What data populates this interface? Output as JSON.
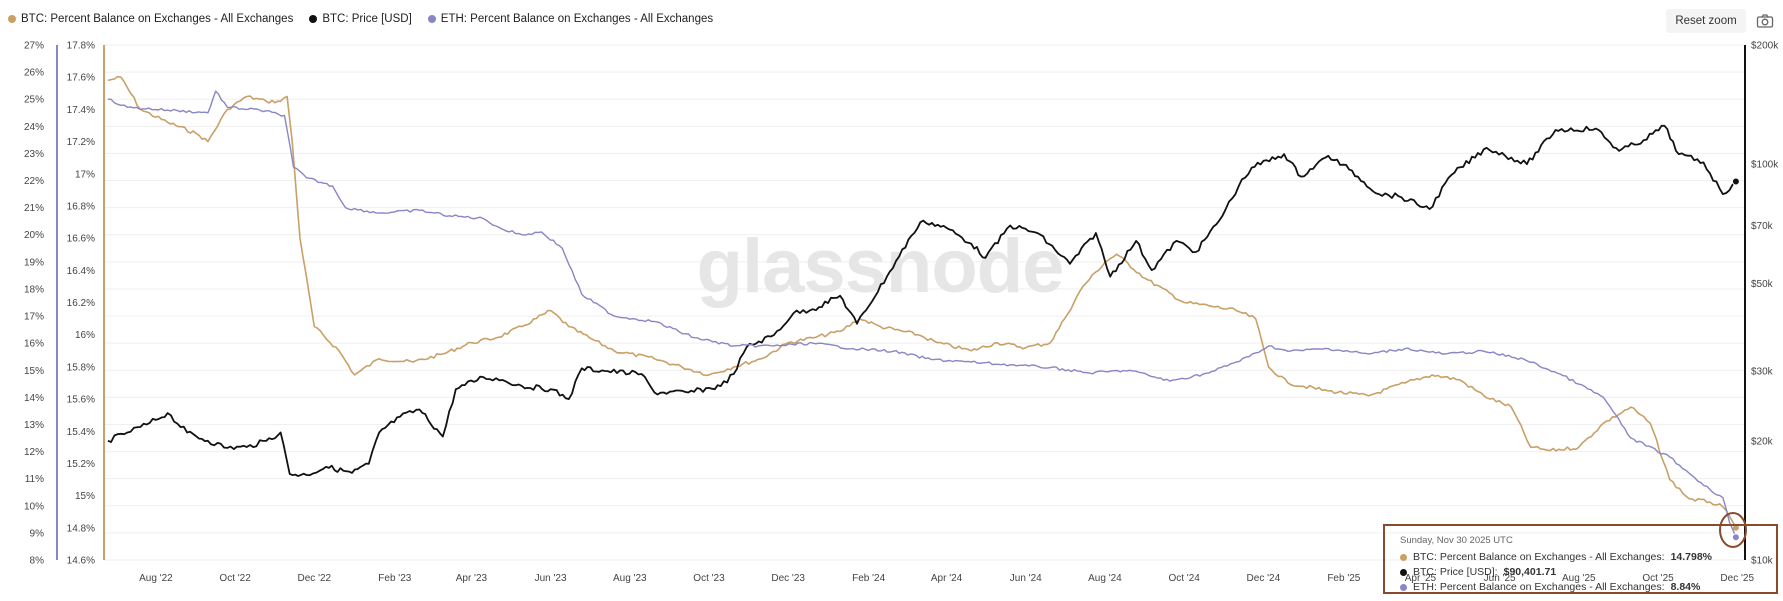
{
  "legend": [
    {
      "label": "BTC: Percent Balance on Exchanges - All Exchanges",
      "color": "#c9a067"
    },
    {
      "label": "BTC: Price [USD]",
      "color": "#111111"
    },
    {
      "label": "ETH: Percent Balance on Exchanges - All Exchanges",
      "color": "#8886c4"
    }
  ],
  "toolbar": {
    "reset_zoom_label": "Reset zoom",
    "camera_icon": "camera-icon"
  },
  "watermark": "glassnode",
  "colors": {
    "btc_balance": "#c9a067",
    "btc_price": "#111111",
    "eth_balance": "#8886c4",
    "highlight_box": "#8b4a2c"
  },
  "tooltip": {
    "date": "Sunday, Nov 30 2025 UTC",
    "rows": [
      {
        "label": "BTC: Percent Balance on Exchanges - All Exchanges:",
        "value": "14.798%",
        "color": "#c9a067"
      },
      {
        "label": "BTC: Price [USD]:",
        "value": "$90,401.71",
        "color": "#111111"
      },
      {
        "label": "ETH: Percent Balance on Exchanges - All Exchanges:",
        "value": "8.84%",
        "color": "#8886c4"
      }
    ]
  },
  "chart_data": {
    "type": "line",
    "x_ticks": [
      "Aug '22",
      "Oct '22",
      "Dec '22",
      "Feb '23",
      "Apr '23",
      "Jun '23",
      "Aug '23",
      "Oct '23",
      "Dec '23",
      "Feb '24",
      "Apr '24",
      "Jun '24",
      "Aug '24",
      "Oct '24",
      "Dec '24",
      "Feb '25",
      "Apr '25",
      "Jun '25",
      "Aug '25",
      "Oct '25",
      "Dec '25"
    ],
    "x_range": [
      "2022-06-22",
      "2025-12-07"
    ],
    "axes": {
      "eth_left": {
        "ticks": [
          "27%",
          "26%",
          "25%",
          "24%",
          "23%",
          "22%",
          "21%",
          "20%",
          "19%",
          "18%",
          "17%",
          "16%",
          "15%",
          "14%",
          "13%",
          "12%",
          "11%",
          "10%",
          "9%",
          "8%"
        ],
        "range": [
          8,
          27
        ]
      },
      "btc_left": {
        "ticks": [
          "17.8%",
          "17.6%",
          "17.4%",
          "17.2%",
          "17%",
          "16.8%",
          "16.6%",
          "16.4%",
          "16.2%",
          "16%",
          "15.8%",
          "15.6%",
          "15.4%",
          "15.2%",
          "15%",
          "14.8%",
          "14.6%"
        ],
        "range": [
          14.6,
          17.8
        ]
      },
      "price_right": {
        "ticks": [
          "$200k",
          "$100k",
          "$70k",
          "$50k",
          "$30k",
          "$20k",
          "$10k"
        ],
        "tick_values": [
          200000,
          100000,
          70000,
          50000,
          30000,
          20000,
          10000
        ],
        "scale": "log",
        "range": [
          10000,
          200000
        ]
      }
    },
    "grid": "horizontal",
    "legend_position": "top-left",
    "series": [
      {
        "name": "BTC: Percent Balance on Exchanges - All Exchanges",
        "axis": "btc_left",
        "points": [
          [
            "2022-06-25",
            17.58
          ],
          [
            "2022-07-05",
            17.6
          ],
          [
            "2022-07-20",
            17.4
          ],
          [
            "2022-08-10",
            17.32
          ],
          [
            "2022-09-01",
            17.25
          ],
          [
            "2022-09-10",
            17.2
          ],
          [
            "2022-09-25",
            17.4
          ],
          [
            "2022-10-10",
            17.48
          ],
          [
            "2022-10-25",
            17.45
          ],
          [
            "2022-11-05",
            17.45
          ],
          [
            "2022-11-10",
            17.48
          ],
          [
            "2022-11-14",
            17.2
          ],
          [
            "2022-11-20",
            16.6
          ],
          [
            "2022-12-01",
            16.05
          ],
          [
            "2022-12-20",
            15.9
          ],
          [
            "2023-01-01",
            15.75
          ],
          [
            "2023-01-20",
            15.85
          ],
          [
            "2023-02-15",
            15.83
          ],
          [
            "2023-03-10",
            15.88
          ],
          [
            "2023-04-01",
            15.95
          ],
          [
            "2023-04-20",
            15.98
          ],
          [
            "2023-05-10",
            16.05
          ],
          [
            "2023-06-01",
            16.15
          ],
          [
            "2023-06-15",
            16.05
          ],
          [
            "2023-07-01",
            15.98
          ],
          [
            "2023-07-20",
            15.9
          ],
          [
            "2023-08-20",
            15.85
          ],
          [
            "2023-09-10",
            15.8
          ],
          [
            "2023-10-01",
            15.75
          ],
          [
            "2023-10-20",
            15.8
          ],
          [
            "2023-11-10",
            15.85
          ],
          [
            "2023-12-01",
            15.95
          ],
          [
            "2023-12-20",
            15.98
          ],
          [
            "2024-01-10",
            16.02
          ],
          [
            "2024-01-25",
            16.1
          ],
          [
            "2024-02-10",
            16.05
          ],
          [
            "2024-03-10",
            16.0
          ],
          [
            "2024-03-25",
            15.95
          ],
          [
            "2024-04-20",
            15.9
          ],
          [
            "2024-05-10",
            15.95
          ],
          [
            "2024-06-01",
            15.92
          ],
          [
            "2024-06-20",
            15.95
          ],
          [
            "2024-07-01",
            16.1
          ],
          [
            "2024-07-15",
            16.3
          ],
          [
            "2024-08-01",
            16.45
          ],
          [
            "2024-08-10",
            16.5
          ],
          [
            "2024-09-01",
            16.35
          ],
          [
            "2024-10-01",
            16.2
          ],
          [
            "2024-10-20",
            16.18
          ],
          [
            "2024-11-10",
            16.15
          ],
          [
            "2024-11-25",
            16.1
          ],
          [
            "2024-12-05",
            15.8
          ],
          [
            "2024-12-20",
            15.7
          ],
          [
            "2025-01-20",
            15.65
          ],
          [
            "2025-02-20",
            15.62
          ],
          [
            "2025-03-20",
            15.7
          ],
          [
            "2025-04-10",
            15.75
          ],
          [
            "2025-05-01",
            15.72
          ],
          [
            "2025-05-20",
            15.62
          ],
          [
            "2025-06-10",
            15.55
          ],
          [
            "2025-06-25",
            15.3
          ],
          [
            "2025-07-10",
            15.28
          ],
          [
            "2025-08-01",
            15.3
          ],
          [
            "2025-08-20",
            15.45
          ],
          [
            "2025-09-10",
            15.55
          ],
          [
            "2025-09-25",
            15.45
          ],
          [
            "2025-10-10",
            15.1
          ],
          [
            "2025-10-25",
            14.98
          ],
          [
            "2025-11-10",
            14.96
          ],
          [
            "2025-11-20",
            14.93
          ],
          [
            "2025-11-30",
            14.8
          ]
        ]
      },
      {
        "name": "BTC: Price [USD]",
        "axis": "price_right",
        "points": [
          [
            "2022-06-25",
            20000
          ],
          [
            "2022-07-10",
            21000
          ],
          [
            "2022-07-25",
            22000
          ],
          [
            "2022-08-10",
            23500
          ],
          [
            "2022-08-25",
            21000
          ],
          [
            "2022-09-10",
            20000
          ],
          [
            "2022-09-25",
            19200
          ],
          [
            "2022-10-10",
            19300
          ],
          [
            "2022-10-25",
            20000
          ],
          [
            "2022-11-05",
            21000
          ],
          [
            "2022-11-12",
            16500
          ],
          [
            "2022-11-25",
            16400
          ],
          [
            "2022-12-10",
            17200
          ],
          [
            "2022-12-30",
            16600
          ],
          [
            "2023-01-12",
            17500
          ],
          [
            "2023-01-20",
            21000
          ],
          [
            "2023-02-05",
            23000
          ],
          [
            "2023-02-20",
            24000
          ],
          [
            "2023-03-10",
            20500
          ],
          [
            "2023-03-20",
            27000
          ],
          [
            "2023-04-10",
            29000
          ],
          [
            "2023-04-25",
            28500
          ],
          [
            "2023-05-10",
            27500
          ],
          [
            "2023-06-01",
            27000
          ],
          [
            "2023-06-15",
            25500
          ],
          [
            "2023-06-25",
            30500
          ],
          [
            "2023-07-15",
            30000
          ],
          [
            "2023-08-10",
            29500
          ],
          [
            "2023-08-20",
            26500
          ],
          [
            "2023-09-15",
            26500
          ],
          [
            "2023-10-10",
            27500
          ],
          [
            "2023-10-20",
            29500
          ],
          [
            "2023-10-30",
            34500
          ],
          [
            "2023-11-20",
            37000
          ],
          [
            "2023-12-05",
            42000
          ],
          [
            "2023-12-20",
            43000
          ],
          [
            "2024-01-10",
            46500
          ],
          [
            "2024-01-23",
            39500
          ],
          [
            "2024-02-15",
            52000
          ],
          [
            "2024-03-05",
            66000
          ],
          [
            "2024-03-14",
            72000
          ],
          [
            "2024-04-01",
            69000
          ],
          [
            "2024-04-20",
            63000
          ],
          [
            "2024-05-01",
            58000
          ],
          [
            "2024-05-20",
            70000
          ],
          [
            "2024-06-10",
            67000
          ],
          [
            "2024-07-05",
            56000
          ],
          [
            "2024-07-25",
            67000
          ],
          [
            "2024-08-05",
            52000
          ],
          [
            "2024-08-25",
            64000
          ],
          [
            "2024-09-06",
            54000
          ],
          [
            "2024-09-25",
            64000
          ],
          [
            "2024-10-10",
            60000
          ],
          [
            "2024-10-28",
            72000
          ],
          [
            "2024-11-12",
            88000
          ],
          [
            "2024-11-22",
            98000
          ],
          [
            "2024-12-17",
            106000
          ],
          [
            "2024-12-30",
            93000
          ],
          [
            "2025-01-20",
            105000
          ],
          [
            "2025-02-05",
            97000
          ],
          [
            "2025-02-28",
            84000
          ],
          [
            "2025-03-15",
            83000
          ],
          [
            "2025-04-08",
            77000
          ],
          [
            "2025-04-25",
            94000
          ],
          [
            "2025-05-22",
            110000
          ],
          [
            "2025-06-22",
            100000
          ],
          [
            "2025-07-14",
            122000
          ],
          [
            "2025-08-14",
            123000
          ],
          [
            "2025-09-01",
            108000
          ],
          [
            "2025-09-20",
            115000
          ],
          [
            "2025-10-06",
            125000
          ],
          [
            "2025-10-17",
            106000
          ],
          [
            "2025-11-05",
            101000
          ],
          [
            "2025-11-20",
            84000
          ],
          [
            "2025-11-30",
            90401.71
          ]
        ]
      },
      {
        "name": "ETH: Percent Balance on Exchanges - All Exchanges",
        "axis": "eth_left",
        "points": [
          [
            "2022-06-25",
            25
          ],
          [
            "2022-07-10",
            24.7
          ],
          [
            "2022-08-10",
            24.6
          ],
          [
            "2022-09-10",
            24.5
          ],
          [
            "2022-09-16",
            25.3
          ],
          [
            "2022-09-25",
            24.7
          ],
          [
            "2022-10-20",
            24.6
          ],
          [
            "2022-11-08",
            24.4
          ],
          [
            "2022-11-15",
            22.5
          ],
          [
            "2022-11-25",
            22.1
          ],
          [
            "2022-12-15",
            21.8
          ],
          [
            "2022-12-25",
            21.0
          ],
          [
            "2023-01-20",
            20.8
          ],
          [
            "2023-02-20",
            20.9
          ],
          [
            "2023-03-15",
            20.7
          ],
          [
            "2023-04-10",
            20.6
          ],
          [
            "2023-04-25",
            20.2
          ],
          [
            "2023-05-10",
            20.0
          ],
          [
            "2023-05-25",
            20.1
          ],
          [
            "2023-06-10",
            19.5
          ],
          [
            "2023-06-25",
            17.8
          ],
          [
            "2023-07-20",
            17.0
          ],
          [
            "2023-08-20",
            16.8
          ],
          [
            "2023-09-20",
            16.2
          ],
          [
            "2023-10-20",
            15.9
          ],
          [
            "2023-11-20",
            15.9
          ],
          [
            "2023-12-20",
            16.0
          ],
          [
            "2024-01-20",
            15.8
          ],
          [
            "2024-02-20",
            15.7
          ],
          [
            "2024-03-20",
            15.4
          ],
          [
            "2024-04-20",
            15.3
          ],
          [
            "2024-05-20",
            15.2
          ],
          [
            "2024-06-20",
            15.1
          ],
          [
            "2024-07-20",
            14.9
          ],
          [
            "2024-08-20",
            15.0
          ],
          [
            "2024-09-20",
            14.6
          ],
          [
            "2024-10-20",
            14.9
          ],
          [
            "2024-11-20",
            15.5
          ],
          [
            "2024-12-05",
            15.9
          ],
          [
            "2024-12-20",
            15.7
          ],
          [
            "2025-01-20",
            15.8
          ],
          [
            "2025-02-20",
            15.6
          ],
          [
            "2025-03-20",
            15.8
          ],
          [
            "2025-04-20",
            15.6
          ],
          [
            "2025-05-20",
            15.7
          ],
          [
            "2025-06-20",
            15.4
          ],
          [
            "2025-07-20",
            14.8
          ],
          [
            "2025-08-20",
            14.0
          ],
          [
            "2025-09-10",
            12.5
          ],
          [
            "2025-10-10",
            11.8
          ],
          [
            "2025-10-25",
            11.2
          ],
          [
            "2025-11-10",
            10.6
          ],
          [
            "2025-11-20",
            10.3
          ],
          [
            "2025-11-25",
            9.4
          ],
          [
            "2025-11-30",
            8.84
          ]
        ]
      }
    ]
  }
}
